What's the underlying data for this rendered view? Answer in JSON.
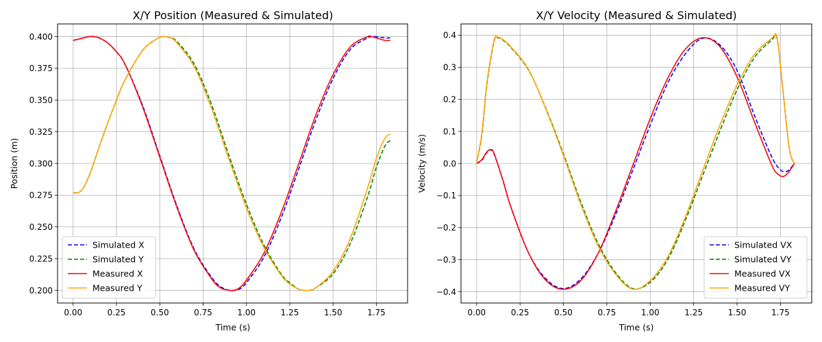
{
  "chart_data": [
    {
      "type": "line",
      "title": "X/Y Position (Measured & Simulated)",
      "xlabel": "Time (s)",
      "ylabel": "Position (m)",
      "xlim": [
        -0.09,
        1.93
      ],
      "ylim": [
        0.19,
        0.41
      ],
      "xticks": [
        0.0,
        0.25,
        0.5,
        0.75,
        1.0,
        1.25,
        1.5,
        1.75
      ],
      "xtick_labels": [
        "0.00",
        "0.25",
        "0.50",
        "0.75",
        "1.00",
        "1.25",
        "1.50",
        "1.75"
      ],
      "yticks": [
        0.2,
        0.225,
        0.25,
        0.275,
        0.3,
        0.325,
        0.35,
        0.375,
        0.4
      ],
      "ytick_labels": [
        "0.200",
        "0.225",
        "0.250",
        "0.275",
        "0.300",
        "0.325",
        "0.350",
        "0.375",
        "0.400"
      ],
      "grid": true,
      "legend_position": "lower-left",
      "series": [
        {
          "name": "Simulated X",
          "color": "#0000ff",
          "dash": true,
          "x": [
            0.0,
            0.03,
            0.06,
            0.09,
            0.12,
            0.15,
            0.2,
            0.25,
            0.3,
            0.4,
            0.5,
            0.6,
            0.7,
            0.8,
            0.85,
            0.9,
            0.93,
            0.96,
            1.0,
            1.1,
            1.2,
            1.3,
            1.4,
            1.5,
            1.6,
            1.7,
            1.72,
            1.75,
            1.8,
            1.83
          ],
          "y": [
            0.397,
            0.398,
            0.399,
            0.4,
            0.4,
            0.399,
            0.395,
            0.388,
            0.378,
            0.346,
            0.306,
            0.266,
            0.232,
            0.21,
            0.203,
            0.2,
            0.2,
            0.201,
            0.206,
            0.226,
            0.257,
            0.295,
            0.334,
            0.367,
            0.39,
            0.399,
            0.4,
            0.4,
            0.399,
            0.399
          ]
        },
        {
          "name": "Simulated Y",
          "color": "#008000",
          "dash": true,
          "x": [
            0.0,
            0.03,
            0.06,
            0.1,
            0.15,
            0.2,
            0.25,
            0.3,
            0.4,
            0.48,
            0.52,
            0.56,
            0.6,
            0.7,
            0.8,
            0.9,
            1.0,
            1.1,
            1.2,
            1.25,
            1.3,
            1.33,
            1.36,
            1.4,
            1.5,
            1.6,
            1.7,
            1.75,
            1.8,
            1.83
          ],
          "y": [
            0.277,
            0.277,
            0.281,
            0.293,
            0.313,
            0.332,
            0.35,
            0.366,
            0.389,
            0.398,
            0.4,
            0.399,
            0.396,
            0.378,
            0.346,
            0.306,
            0.268,
            0.236,
            0.213,
            0.206,
            0.201,
            0.2,
            0.2,
            0.202,
            0.213,
            0.237,
            0.274,
            0.297,
            0.314,
            0.318
          ]
        },
        {
          "name": "Measured X",
          "color": "#ff0000",
          "dash": false,
          "x": [
            0.0,
            0.03,
            0.06,
            0.09,
            0.12,
            0.15,
            0.2,
            0.25,
            0.3,
            0.4,
            0.5,
            0.6,
            0.7,
            0.8,
            0.85,
            0.9,
            0.93,
            0.96,
            1.0,
            1.1,
            1.2,
            1.3,
            1.4,
            1.5,
            1.6,
            1.7,
            1.72,
            1.75,
            1.8,
            1.83
          ],
          "y": [
            0.397,
            0.398,
            0.399,
            0.4,
            0.4,
            0.399,
            0.395,
            0.388,
            0.378,
            0.345,
            0.305,
            0.265,
            0.231,
            0.209,
            0.202,
            0.2,
            0.2,
            0.202,
            0.208,
            0.229,
            0.261,
            0.299,
            0.338,
            0.37,
            0.392,
            0.4,
            0.4,
            0.399,
            0.397,
            0.397
          ]
        },
        {
          "name": "Measured Y",
          "color": "#ffa500",
          "dash": false,
          "x": [
            0.0,
            0.03,
            0.06,
            0.1,
            0.15,
            0.2,
            0.25,
            0.3,
            0.4,
            0.48,
            0.52,
            0.56,
            0.6,
            0.7,
            0.8,
            0.9,
            1.0,
            1.1,
            1.2,
            1.25,
            1.3,
            1.33,
            1.36,
            1.4,
            1.5,
            1.6,
            1.7,
            1.75,
            1.8,
            1.83
          ],
          "y": [
            0.277,
            0.277,
            0.281,
            0.293,
            0.313,
            0.332,
            0.35,
            0.366,
            0.389,
            0.398,
            0.4,
            0.399,
            0.395,
            0.376,
            0.343,
            0.303,
            0.265,
            0.234,
            0.212,
            0.205,
            0.201,
            0.2,
            0.2,
            0.202,
            0.215,
            0.241,
            0.281,
            0.304,
            0.32,
            0.323
          ]
        }
      ]
    },
    {
      "type": "line",
      "title": "X/Y Velocity (Measured & Simulated)",
      "xlabel": "Time (s)",
      "ylabel": "Velocity (m/s)",
      "xlim": [
        -0.09,
        1.93
      ],
      "ylim": [
        -0.435,
        0.435
      ],
      "xticks": [
        0.0,
        0.25,
        0.5,
        0.75,
        1.0,
        1.25,
        1.5,
        1.75
      ],
      "xtick_labels": [
        "0.00",
        "0.25",
        "0.50",
        "0.75",
        "1.00",
        "1.25",
        "1.50",
        "1.75"
      ],
      "yticks": [
        -0.4,
        -0.3,
        -0.2,
        -0.1,
        0.0,
        0.1,
        0.2,
        0.3,
        0.4
      ],
      "ytick_labels": [
        "−0.4",
        "−0.3",
        "−0.2",
        "−0.1",
        "0.0",
        "0.1",
        "0.2",
        "0.3",
        "0.4"
      ],
      "grid": true,
      "legend_position": "lower-right",
      "series": [
        {
          "name": "Simulated VX",
          "color": "#0000ff",
          "dash": true,
          "x": [
            0.0,
            0.03,
            0.06,
            0.08,
            0.1,
            0.15,
            0.2,
            0.3,
            0.4,
            0.5,
            0.6,
            0.7,
            0.8,
            0.9,
            1.0,
            1.1,
            1.2,
            1.3,
            1.4,
            1.5,
            1.6,
            1.7,
            1.75,
            1.78,
            1.8,
            1.83
          ],
          "y": [
            0.0,
            0.01,
            0.035,
            0.042,
            0.03,
            -0.05,
            -0.14,
            -0.28,
            -0.36,
            -0.39,
            -0.36,
            -0.28,
            -0.16,
            -0.02,
            0.12,
            0.25,
            0.34,
            0.39,
            0.37,
            0.29,
            0.15,
            0.02,
            -0.02,
            -0.025,
            -0.02,
            0.0
          ]
        },
        {
          "name": "Simulated VY",
          "color": "#008000",
          "dash": true,
          "x": [
            0.0,
            0.03,
            0.06,
            0.1,
            0.12,
            0.15,
            0.2,
            0.3,
            0.4,
            0.5,
            0.6,
            0.7,
            0.8,
            0.9,
            1.0,
            1.1,
            1.2,
            1.3,
            1.4,
            1.5,
            1.6,
            1.7,
            1.73,
            1.76,
            1.8,
            1.83
          ],
          "y": [
            0.0,
            0.09,
            0.25,
            0.38,
            0.392,
            0.385,
            0.36,
            0.29,
            0.17,
            0.03,
            -0.12,
            -0.25,
            -0.34,
            -0.39,
            -0.37,
            -0.3,
            -0.18,
            -0.04,
            0.1,
            0.23,
            0.33,
            0.385,
            0.39,
            0.25,
            0.05,
            0.0
          ]
        },
        {
          "name": "Measured VX",
          "color": "#ff0000",
          "dash": false,
          "x": [
            0.0,
            0.03,
            0.06,
            0.08,
            0.1,
            0.15,
            0.2,
            0.3,
            0.4,
            0.5,
            0.6,
            0.7,
            0.8,
            0.9,
            1.0,
            1.1,
            1.2,
            1.3,
            1.4,
            1.5,
            1.6,
            1.7,
            1.74,
            1.77,
            1.8,
            1.83
          ],
          "y": [
            0.0,
            0.012,
            0.037,
            0.043,
            0.032,
            -0.05,
            -0.14,
            -0.28,
            -0.365,
            -0.392,
            -0.365,
            -0.28,
            -0.15,
            -0.005,
            0.14,
            0.265,
            0.355,
            0.392,
            0.365,
            0.27,
            0.13,
            -0.005,
            -0.035,
            -0.04,
            -0.025,
            0.0
          ]
        },
        {
          "name": "Measured VY",
          "color": "#ffa500",
          "dash": false,
          "x": [
            0.0,
            0.03,
            0.06,
            0.1,
            0.12,
            0.15,
            0.2,
            0.3,
            0.4,
            0.5,
            0.6,
            0.7,
            0.8,
            0.9,
            1.0,
            1.1,
            1.2,
            1.3,
            1.4,
            1.5,
            1.6,
            1.7,
            1.73,
            1.76,
            1.8,
            1.83
          ],
          "y": [
            0.0,
            0.095,
            0.255,
            0.383,
            0.394,
            0.387,
            0.362,
            0.292,
            0.168,
            0.025,
            -0.127,
            -0.257,
            -0.345,
            -0.392,
            -0.365,
            -0.292,
            -0.17,
            -0.025,
            0.118,
            0.245,
            0.34,
            0.39,
            0.393,
            0.25,
            0.05,
            0.0
          ]
        }
      ]
    }
  ]
}
